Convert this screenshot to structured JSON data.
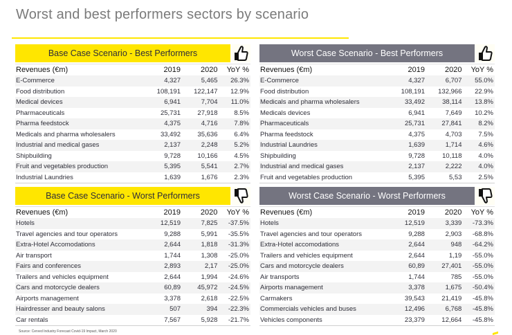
{
  "title": "Worst and best performers sectors by scenario",
  "colors": {
    "yellow": "#ffe600",
    "grey_header": "#747480",
    "title_text": "#7a7a7a"
  },
  "source": "Source: Cerved Industry Forecast Covid-19 Impact, March 2020",
  "columns": {
    "name": "Revenues (€m)",
    "y2019": "2019",
    "y2020": "2020",
    "yoy": "YoY %"
  },
  "panels": {
    "base_best": {
      "title": "Base Case Scenario - Best Performers",
      "icon": "thumbs-up-icon",
      "rows": [
        {
          "name": "E-Commerce",
          "y2019": "4,327",
          "y2020": "5,465",
          "yoy": "26.3%"
        },
        {
          "name": "Food distribution",
          "y2019": "108,191",
          "y2020": "122,147",
          "yoy": "12.9%"
        },
        {
          "name": "Medical devices",
          "y2019": "6,941",
          "y2020": "7,704",
          "yoy": "11.0%"
        },
        {
          "name": "Pharmaceuticals",
          "y2019": "25,731",
          "y2020": "27,918",
          "yoy": "8.5%"
        },
        {
          "name": "Pharma feedstock",
          "y2019": "4,375",
          "y2020": "4,716",
          "yoy": "7.8%"
        },
        {
          "name": "Medicals and pharma wholesalers",
          "y2019": "33,492",
          "y2020": "35,636",
          "yoy": "6.4%"
        },
        {
          "name": "Industrial and medical gases",
          "y2019": "2,137",
          "y2020": "2,248",
          "yoy": "5.2%"
        },
        {
          "name": "Shipbuilding",
          "y2019": "9,728",
          "y2020": "10,166",
          "yoy": "4.5%"
        },
        {
          "name": "Fruit and vegetables production",
          "y2019": "5,395",
          "y2020": "5,541",
          "yoy": "2.7%"
        },
        {
          "name": "Industrial Laundries",
          "y2019": "1,639",
          "y2020": "1,676",
          "yoy": "2.3%"
        }
      ]
    },
    "worst_best": {
      "title": "Worst Case Scenario - Best Performers",
      "icon": "thumbs-up-icon",
      "rows": [
        {
          "name": "E-Commerce",
          "y2019": "4,327",
          "y2020": "6,707",
          "yoy": "55.0%"
        },
        {
          "name": "Food distribution",
          "y2019": "108,191",
          "y2020": "132,966",
          "yoy": "22.9%"
        },
        {
          "name": "Medicals and pharma wholesalers",
          "y2019": "33,492",
          "y2020": "38,114",
          "yoy": "13.8%"
        },
        {
          "name": "Medicals devices",
          "y2019": "6,941",
          "y2020": "7,649",
          "yoy": "10.2%"
        },
        {
          "name": "Pharmaceuticals",
          "y2019": "25,731",
          "y2020": "27,841",
          "yoy": "8.2%"
        },
        {
          "name": "Pharma feedstock",
          "y2019": "4,375",
          "y2020": "4,703",
          "yoy": "7.5%"
        },
        {
          "name": "Industrial Laundries",
          "y2019": "1,639",
          "y2020": "1,714",
          "yoy": "4.6%"
        },
        {
          "name": "Shipbuilding",
          "y2019": "9,728",
          "y2020": "10,118",
          "yoy": "4.0%"
        },
        {
          "name": "Industrial and medical gases",
          "y2019": "2,137",
          "y2020": "2,222",
          "yoy": "4.0%"
        },
        {
          "name": "Fruit and vegetables production",
          "y2019": "5,395",
          "y2020": "5,53",
          "yoy": "2.5%"
        }
      ]
    },
    "base_worst": {
      "title": "Base Case Scenario - Worst Performers",
      "icon": "thumbs-down-icon",
      "rows": [
        {
          "name": "Hotels",
          "y2019": "12,519",
          "y2020": "7,825",
          "yoy": "-37.5%"
        },
        {
          "name": "Travel agencies and tour operators",
          "y2019": "9,288",
          "y2020": "5,991",
          "yoy": "-35.5%"
        },
        {
          "name": "Extra-Hotel Accomodations",
          "y2019": "2,644",
          "y2020": "1,818",
          "yoy": "-31.3%"
        },
        {
          "name": "Air transport",
          "y2019": "1,744",
          "y2020": "1,308",
          "yoy": "-25.0%"
        },
        {
          "name": "Fairs and conferences",
          "y2019": "2,893",
          "y2020": "2,17",
          "yoy": "-25.0%"
        },
        {
          "name": "Trailers and vehicles equipment",
          "y2019": "2,644",
          "y2020": "1,994",
          "yoy": "-24.6%"
        },
        {
          "name": "Cars and motorcycle dealers",
          "y2019": "60,89",
          "y2020": "45,972",
          "yoy": "-24.5%"
        },
        {
          "name": "Airports management",
          "y2019": "3,378",
          "y2020": "2,618",
          "yoy": "-22.5%"
        },
        {
          "name": "Hairdresser and beauty salons",
          "y2019": "507",
          "y2020": "394",
          "yoy": "-22.3%"
        },
        {
          "name": "Car rentals",
          "y2019": "7,567",
          "y2020": "5,928",
          "yoy": "-21.7%"
        }
      ]
    },
    "worst_worst": {
      "title": "Worst Case Scenario  - Worst Performers",
      "icon": "thumbs-down-icon",
      "rows": [
        {
          "name": "Hotels",
          "y2019": "12,519",
          "y2020": "3,339",
          "yoy": "-73.3%"
        },
        {
          "name": "Travel agencies and tour operators",
          "y2019": "9,288",
          "y2020": "2,903",
          "yoy": "-68.8%"
        },
        {
          "name": "Extra-Hotel accomodations",
          "y2019": "2,644",
          "y2020": "948",
          "yoy": "-64.2%"
        },
        {
          "name": "Trailers and vehicles equipment",
          "y2019": "2,644",
          "y2020": "1,19",
          "yoy": "-55.0%"
        },
        {
          "name": "Cars and motorcycle dealers",
          "y2019": "60,89",
          "y2020": "27,401",
          "yoy": "-55.0%"
        },
        {
          "name": "Air transports",
          "y2019": "1,744",
          "y2020": "785",
          "yoy": "-55.0%"
        },
        {
          "name": "Airports management",
          "y2019": "3,378",
          "y2020": "1,675",
          "yoy": "-50.4%"
        },
        {
          "name": "Carmakers",
          "y2019": "39,543",
          "y2020": "21,419",
          "yoy": "-45.8%"
        },
        {
          "name": "Commercials vehicles and buses",
          "y2019": "12,496",
          "y2020": "6,768",
          "yoy": "-45.8%"
        },
        {
          "name": "Vehicles components",
          "y2019": "23,379",
          "y2020": "12,664",
          "yoy": "-45.8%"
        }
      ]
    }
  }
}
